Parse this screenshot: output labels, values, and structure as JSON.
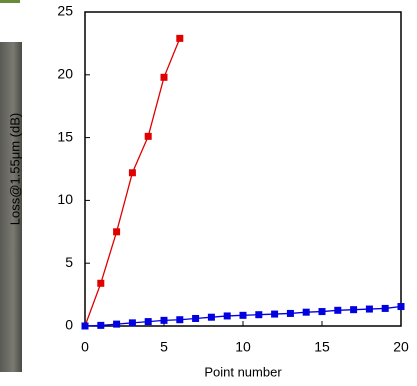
{
  "chart_data": {
    "type": "line",
    "xlabel": "Point number",
    "ylabel": "Loss@1.55μm (dB)",
    "series": [
      {
        "color": "#e00000",
        "x": [
          0,
          1,
          2,
          3,
          4,
          5,
          6
        ],
        "values": [
          0,
          3.4,
          7.5,
          12.2,
          15.1,
          19.8,
          22.9
        ]
      },
      {
        "color": "#0000e0",
        "x": [
          0,
          1,
          2,
          3,
          4,
          5,
          6,
          7,
          8,
          9,
          10,
          11,
          12,
          13,
          14,
          15,
          16,
          17,
          18,
          19,
          20
        ],
        "values": [
          0,
          0.05,
          0.15,
          0.25,
          0.35,
          0.45,
          0.5,
          0.6,
          0.7,
          0.8,
          0.85,
          0.9,
          0.95,
          1.0,
          1.1,
          1.15,
          1.25,
          1.3,
          1.35,
          1.4,
          1.55
        ]
      }
    ],
    "xlim": [
      0,
      20
    ],
    "xticks": [
      0,
      5,
      10,
      15,
      20
    ],
    "ylim": [
      0,
      25
    ],
    "yticks": [
      0,
      5,
      10,
      15,
      20,
      25
    ],
    "grid": false
  }
}
